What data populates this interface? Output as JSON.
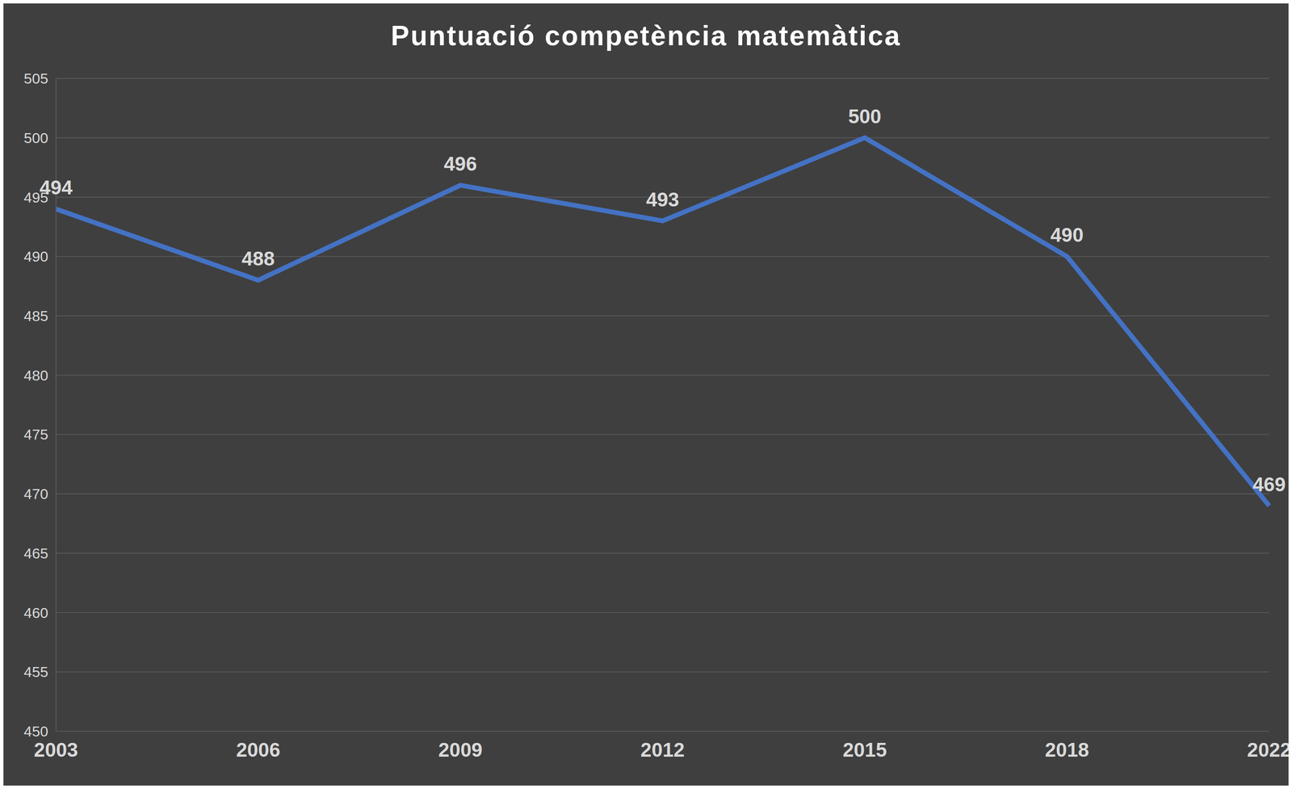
{
  "chart_data": {
    "type": "line",
    "title": "Puntuació competència matemàtica",
    "categories": [
      "2003",
      "2006",
      "2009",
      "2012",
      "2015",
      "2018",
      "2022"
    ],
    "values": [
      494,
      488,
      496,
      493,
      500,
      490,
      469
    ],
    "color": "#4472c4",
    "ylim": [
      450,
      505
    ],
    "yticks": [
      450,
      455,
      460,
      465,
      470,
      475,
      480,
      485,
      490,
      495,
      500,
      505
    ],
    "grid": true,
    "data_labels": true
  }
}
